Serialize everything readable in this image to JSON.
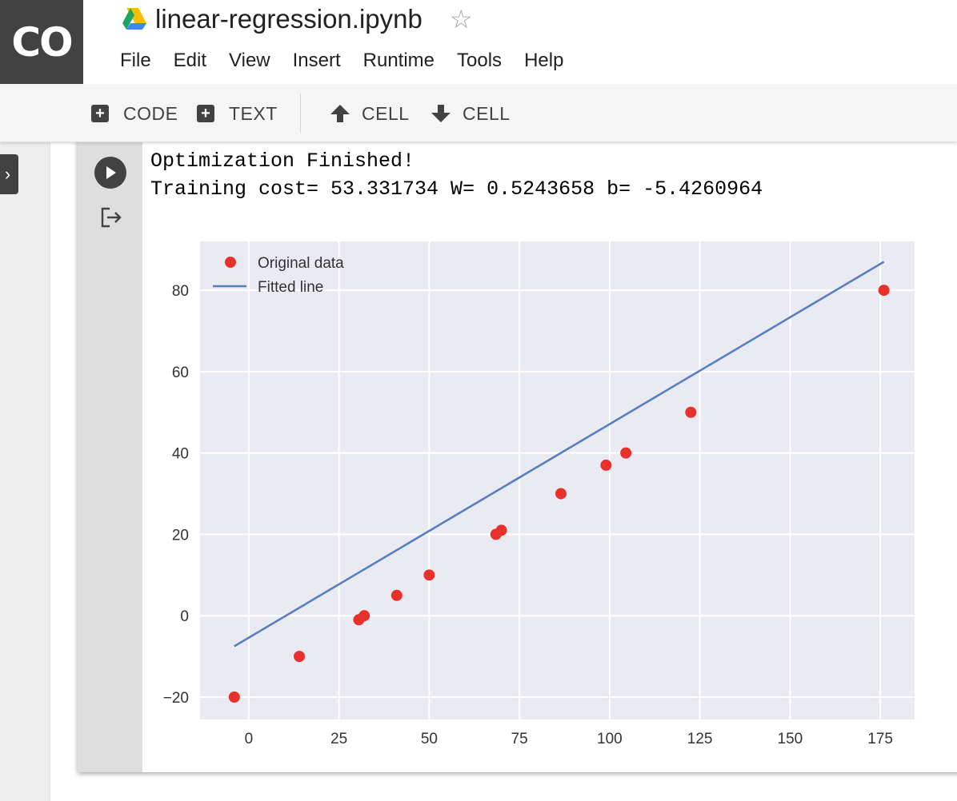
{
  "header": {
    "logo_text": "CO",
    "title": "linear-regression.ipynb",
    "star_icon": "☆"
  },
  "menu": [
    "File",
    "Edit",
    "View",
    "Insert",
    "Runtime",
    "Tools",
    "Help"
  ],
  "toolbar": {
    "code_label": "CODE",
    "text_label": "TEXT",
    "cell_up_label": "CELL",
    "cell_down_label": "CELL"
  },
  "output": {
    "line1": "Optimization Finished!",
    "line2": "Training cost= 53.331734 W= 0.5243658 b= -5.4260964"
  },
  "chart_data": {
    "type": "scatter",
    "title": "",
    "xlabel": "",
    "ylabel": "",
    "xlim": [
      -13.5,
      184.5
    ],
    "ylim": [
      -25.5,
      92
    ],
    "x_ticks": [
      0,
      25,
      50,
      75,
      100,
      125,
      150,
      175
    ],
    "y_ticks": [
      -20,
      0,
      20,
      40,
      60,
      80
    ],
    "grid": true,
    "legend": "top-left",
    "series": [
      {
        "name": "Original data",
        "kind": "scatter",
        "color": "#e8312b",
        "x": [
          -4,
          14,
          30.5,
          32,
          41,
          50,
          68.5,
          70,
          86.5,
          99,
          104.5,
          122.5,
          176
        ],
        "y": [
          -20,
          -10,
          -1,
          0,
          5,
          10,
          20,
          21,
          30,
          37,
          40,
          50,
          80
        ]
      },
      {
        "name": "Fitted line",
        "kind": "line",
        "color": "#5a7fbe",
        "x": [
          -4,
          176
        ],
        "y": [
          -7.5,
          87
        ]
      }
    ]
  }
}
